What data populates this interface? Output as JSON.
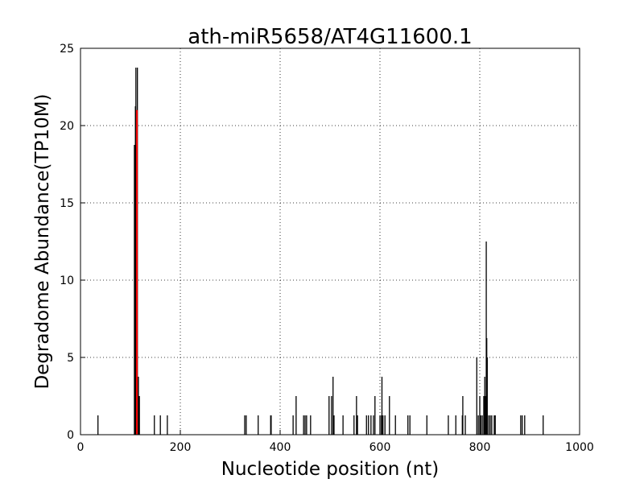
{
  "chart_data": {
    "type": "bar",
    "title": "ath-miR5658/AT4G11600.1",
    "x_label": "Nucleotide position (nt)",
    "y_label": "Degradome Abundance(TP10M)",
    "xlim": [
      0,
      1000
    ],
    "ylim": [
      0,
      25
    ],
    "xticks": [
      0,
      200,
      400,
      600,
      800,
      1000
    ],
    "yticks": [
      0,
      5,
      10,
      15,
      20,
      25
    ],
    "grid": true,
    "series": [
      {
        "color": "#000000",
        "x": [
          35,
          108,
          110,
          111,
          114,
          116,
          118,
          148,
          160,
          174,
          329,
          332,
          356,
          381,
          382,
          426,
          432,
          447,
          450,
          453,
          461,
          498,
          503,
          506,
          508,
          526,
          548,
          553,
          555,
          573,
          577,
          582,
          587,
          590,
          600,
          603,
          604,
          606,
          610,
          619,
          631,
          656,
          660,
          694,
          737,
          752,
          765,
          766,
          771,
          794,
          797,
          800,
          802,
          805,
          808,
          810,
          811,
          813,
          814,
          815,
          818,
          821,
          824,
          829,
          831,
          882,
          885,
          890,
          927
        ],
        "values": [
          1.25,
          18.75,
          21.25,
          23.75,
          23.75,
          3.75,
          2.5,
          1.25,
          1.25,
          1.25,
          1.25,
          1.25,
          1.25,
          1.25,
          1.25,
          1.25,
          2.5,
          1.25,
          1.25,
          1.25,
          1.25,
          2.5,
          2.5,
          3.75,
          1.25,
          1.25,
          1.25,
          2.5,
          1.25,
          1.25,
          1.25,
          1.25,
          1.25,
          2.5,
          1.25,
          1.25,
          3.75,
          1.25,
          1.25,
          2.5,
          1.25,
          1.25,
          1.25,
          1.25,
          1.25,
          1.25,
          1.25,
          2.5,
          1.25,
          5,
          1.25,
          2.5,
          1.25,
          1.25,
          2.5,
          3.75,
          2.5,
          12.5,
          6.25,
          5,
          1.25,
          1.25,
          1.25,
          1.25,
          1.25,
          1.25,
          1.25,
          1.25,
          1.25
        ]
      },
      {
        "color": "#ff0000",
        "x": [
          113
        ],
        "values": [
          21
        ]
      }
    ]
  }
}
